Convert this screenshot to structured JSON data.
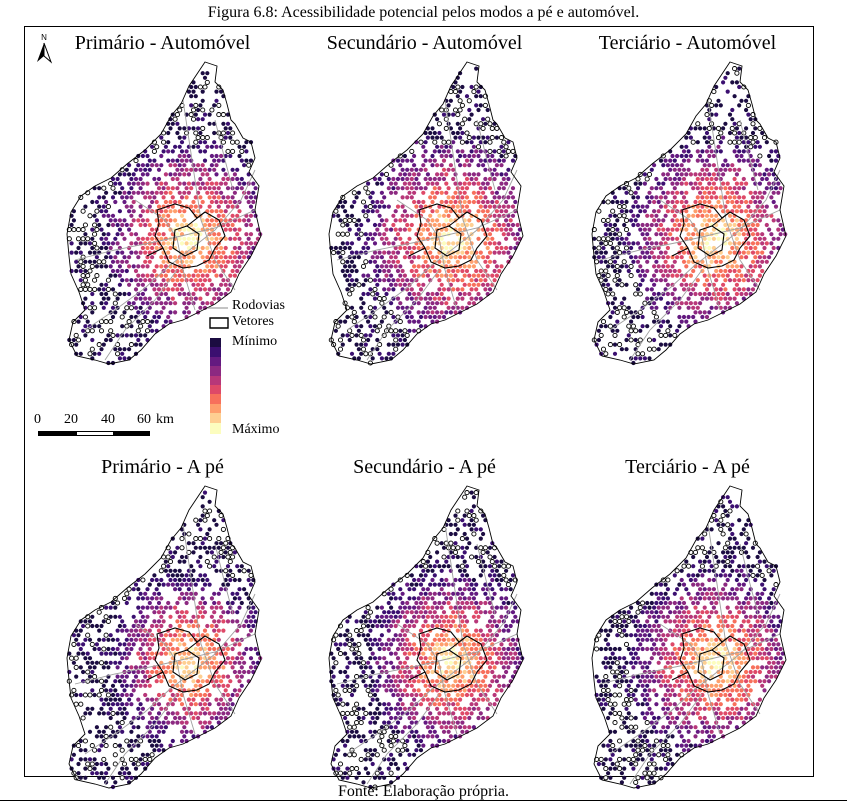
{
  "figure_caption": "Figura 6.8: Acessibilidade potencial pelos modos a pé e automóvel.",
  "source_caption": "Fonte: Elaboração própria.",
  "north_arrow_label": "N",
  "panels": [
    {
      "title": "Primário - Automóvel",
      "density": 0.82,
      "core": 0.55
    },
    {
      "title": "Secundário - Automóvel",
      "density": 0.85,
      "core": 0.6
    },
    {
      "title": "Terciário - Automóvel",
      "density": 0.83,
      "core": 0.58
    },
    {
      "title": "Primário - A pé",
      "density": 0.8,
      "core": 0.45
    },
    {
      "title": "Secundário - A pé",
      "density": 0.84,
      "core": 0.5
    },
    {
      "title": "Terciário - A pé",
      "density": 0.86,
      "core": 0.52
    }
  ],
  "legend": {
    "roads_label": "Rodovias",
    "vectors_label": "Vetores",
    "min_label": "Mínimo",
    "max_label": "Máximo",
    "colors": [
      "#1b0c41",
      "#3b0f70",
      "#641a80",
      "#8c2981",
      "#b73779",
      "#de4968",
      "#f7705c",
      "#fe9f6d",
      "#fecf92",
      "#fcfdbf"
    ],
    "roads_color": "#a0a0a0",
    "vectors_color": "#000000"
  },
  "scale_bar": {
    "ticks": [
      "0",
      "20",
      "40",
      "60"
    ],
    "unit": "km"
  }
}
